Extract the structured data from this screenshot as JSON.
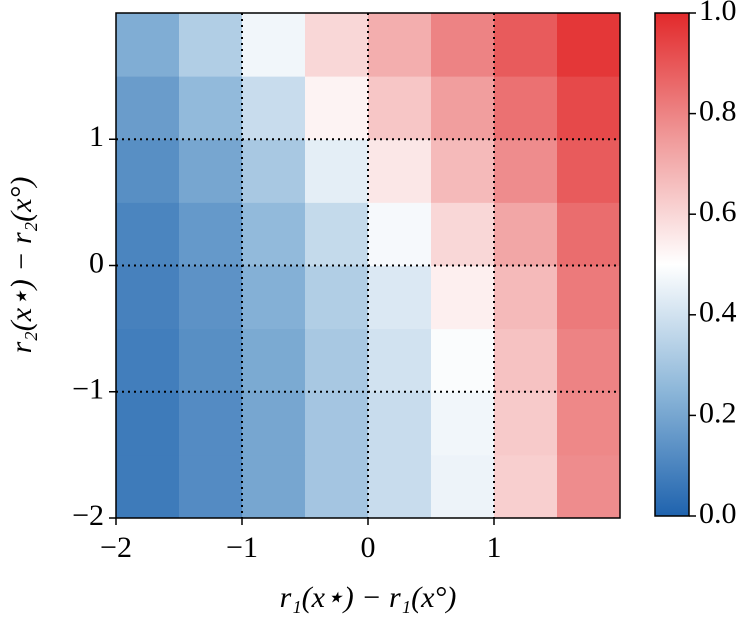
{
  "chart_data": {
    "type": "heatmap",
    "x": [
      -1.75,
      -1.25,
      -0.75,
      -0.25,
      0.25,
      0.75,
      1.25,
      1.75
    ],
    "y": [
      -1.75,
      -1.25,
      -0.75,
      -0.25,
      0.25,
      0.75,
      1.25,
      1.75
    ],
    "z": [
      [
        0.07,
        0.12,
        0.2,
        0.3,
        0.38,
        0.46,
        0.62,
        0.78
      ],
      [
        0.07,
        0.12,
        0.2,
        0.3,
        0.38,
        0.47,
        0.63,
        0.79
      ],
      [
        0.08,
        0.13,
        0.21,
        0.31,
        0.4,
        0.49,
        0.65,
        0.8
      ],
      [
        0.09,
        0.14,
        0.23,
        0.33,
        0.42,
        0.54,
        0.67,
        0.82
      ],
      [
        0.1,
        0.16,
        0.26,
        0.37,
        0.48,
        0.6,
        0.72,
        0.85
      ],
      [
        0.13,
        0.2,
        0.31,
        0.44,
        0.56,
        0.67,
        0.78,
        0.89
      ],
      [
        0.17,
        0.26,
        0.38,
        0.53,
        0.64,
        0.74,
        0.84,
        0.93
      ],
      [
        0.22,
        0.33,
        0.47,
        0.6,
        0.7,
        0.8,
        0.89,
        0.97
      ]
    ],
    "xlim": [
      -2,
      2
    ],
    "ylim": [
      -2,
      2
    ],
    "xticks": [
      {
        "value": -2,
        "label": "−2"
      },
      {
        "value": -1,
        "label": "−1"
      },
      0,
      1
    ],
    "yticks": [
      {
        "value": -2,
        "label": "−2"
      },
      {
        "value": -1,
        "label": "−1"
      },
      0,
      1
    ],
    "xlabel": "r₁(x⋆) − r₁(x°)",
    "ylabel": "r₂(x⋆) − r₂(x°)",
    "grid": true,
    "colorscale": [
      [
        0,
        "#1f63ae"
      ],
      [
        0.25,
        "#8db7d9"
      ],
      [
        0.5,
        "#ffffff"
      ],
      [
        0.75,
        "#f09a9a"
      ],
      [
        1,
        "#e2292b"
      ]
    ],
    "zlim": [
      0,
      1
    ],
    "zticks": [
      {
        "value": 0,
        "label": "0.0"
      },
      0.2,
      0.4,
      0.6,
      0.8,
      {
        "value": 1,
        "label": "1.0"
      }
    ]
  }
}
